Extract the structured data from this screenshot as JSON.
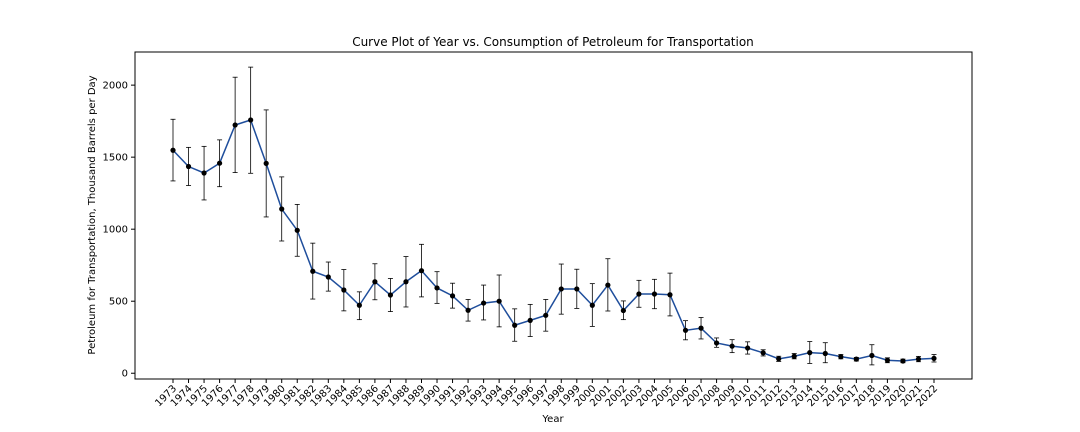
{
  "chart_data": {
    "type": "line",
    "title": "Curve Plot of Year vs. Consumption of Petroleum for Transportation",
    "xlabel": "Year",
    "ylabel": "Petroleum for Transportation, Thousand Barrels per Day",
    "ylim": [
      -40,
      2230
    ],
    "yticks": [
      0,
      500,
      1000,
      1500,
      2000
    ],
    "grid": false,
    "legend": "none",
    "colors": {
      "line": "#1f4e9c",
      "marker": "#000000",
      "errorbar": "#000000",
      "axes": "#000000"
    },
    "x": [
      "1973",
      "1974",
      "1975",
      "1976",
      "1977",
      "1978",
      "1979",
      "1980",
      "1981",
      "1982",
      "1983",
      "1984",
      "1985",
      "1986",
      "1987",
      "1988",
      "1989",
      "1990",
      "1991",
      "1992",
      "1993",
      "1994",
      "1995",
      "1996",
      "1997",
      "1998",
      "1999",
      "2000",
      "2001",
      "2002",
      "2003",
      "2004",
      "2005",
      "2006",
      "2007",
      "2008",
      "2009",
      "2010",
      "2011",
      "2012",
      "2013",
      "2014",
      "2015",
      "2016",
      "2017",
      "2018",
      "2019",
      "2020",
      "2021",
      "2022"
    ],
    "series": [
      {
        "values": [
          1548,
          1435,
          1390,
          1458,
          1723,
          1758,
          1457,
          1140,
          992,
          708,
          668,
          578,
          472,
          635,
          543,
          635,
          712,
          592,
          537,
          437,
          487,
          500,
          333,
          367,
          402,
          585,
          585,
          472,
          612,
          435,
          550,
          550,
          545,
          298,
          313,
          210,
          188,
          175,
          142,
          100,
          118,
          143,
          137,
          115,
          98,
          123,
          90,
          85,
          98,
          103
        ],
        "err_low": [
          1335,
          1303,
          1203,
          1295,
          1393,
          1388,
          1085,
          918,
          812,
          515,
          570,
          433,
          372,
          510,
          428,
          460,
          530,
          485,
          452,
          362,
          370,
          322,
          222,
          255,
          292,
          410,
          450,
          325,
          432,
          372,
          458,
          448,
          398,
          232,
          238,
          180,
          143,
          133,
          120,
          82,
          100,
          68,
          73,
          100,
          85,
          58,
          73,
          73,
          80,
          78
        ],
        "err_high": [
          1763,
          1568,
          1575,
          1620,
          2055,
          2125,
          1828,
          1363,
          1172,
          903,
          772,
          720,
          565,
          760,
          658,
          810,
          895,
          705,
          625,
          512,
          612,
          682,
          447,
          478,
          512,
          758,
          722,
          622,
          795,
          502,
          645,
          652,
          695,
          365,
          387,
          245,
          233,
          218,
          163,
          118,
          137,
          220,
          212,
          130,
          110,
          198,
          107,
          98,
          117,
          130
        ]
      }
    ]
  }
}
